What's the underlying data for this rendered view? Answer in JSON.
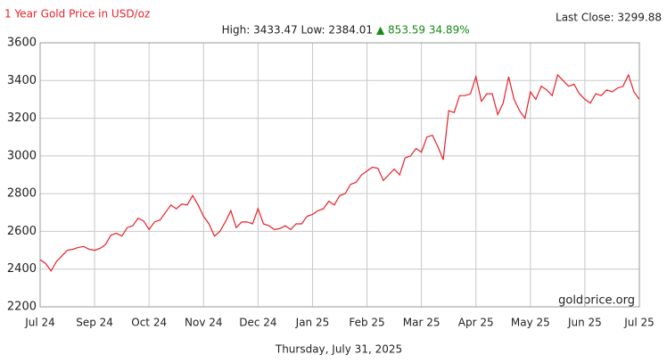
{
  "chart_data": {
    "type": "line",
    "title": "1 Year Gold Price in USD/oz",
    "last_close": "Last Close: 3299.88",
    "high_low": "High: 3433.47 Low: 2384.01",
    "change": "▲ 853.59 34.89%",
    "watermark": "goldprice.org",
    "date": "Thursday, July 31, 2025",
    "color": "#e8212a",
    "grid": true,
    "xlim": [
      0,
      110
    ],
    "xticks": [
      {
        "value": 0,
        "label": "Jul 24"
      },
      {
        "value": 10,
        "label": "Sep 24"
      },
      {
        "value": 20,
        "label": "Oct 24"
      },
      {
        "value": 30,
        "label": "Nov 24"
      },
      {
        "value": 40,
        "label": "Dec 24"
      },
      {
        "value": 50,
        "label": "Jan 25"
      },
      {
        "value": 60,
        "label": "Feb 25"
      },
      {
        "value": 70,
        "label": "Mar 25"
      },
      {
        "value": 80,
        "label": "Apr 25"
      },
      {
        "value": 90,
        "label": "May 25"
      },
      {
        "value": 100,
        "label": "Jun 25"
      },
      {
        "value": 110,
        "label": "Jul 25"
      }
    ],
    "ylim": [
      2200,
      3600
    ],
    "yticks": [
      2200,
      2400,
      2600,
      2800,
      3000,
      3200,
      3400,
      3600
    ],
    "x": [
      0,
      1,
      2,
      3,
      4,
      5,
      6,
      7,
      8,
      9,
      10,
      11,
      12,
      13,
      14,
      15,
      16,
      17,
      18,
      19,
      20,
      21,
      22,
      23,
      24,
      25,
      26,
      27,
      28,
      29,
      30,
      31,
      32,
      33,
      34,
      35,
      36,
      37,
      38,
      39,
      40,
      41,
      42,
      43,
      44,
      45,
      46,
      47,
      48,
      49,
      50,
      51,
      52,
      53,
      54,
      55,
      56,
      57,
      58,
      59,
      60,
      61,
      62,
      63,
      64,
      65,
      66,
      67,
      68,
      69,
      70,
      71,
      72,
      73,
      74,
      75,
      76,
      77,
      78,
      79,
      80,
      81,
      82,
      83,
      84,
      85,
      86,
      87,
      88,
      89,
      90,
      91,
      92,
      93,
      94,
      95,
      96,
      97,
      98,
      99,
      100,
      101,
      102,
      103,
      104,
      105,
      106,
      107,
      108,
      109,
      110
    ],
    "values": [
      2450,
      2430,
      2390,
      2440,
      2470,
      2500,
      2505,
      2515,
      2520,
      2505,
      2500,
      2510,
      2530,
      2580,
      2590,
      2575,
      2620,
      2630,
      2670,
      2655,
      2610,
      2650,
      2660,
      2700,
      2740,
      2720,
      2745,
      2740,
      2790,
      2740,
      2680,
      2640,
      2575,
      2600,
      2650,
      2710,
      2620,
      2650,
      2650,
      2640,
      2720,
      2640,
      2630,
      2610,
      2615,
      2630,
      2610,
      2640,
      2640,
      2680,
      2690,
      2710,
      2720,
      2760,
      2740,
      2790,
      2800,
      2850,
      2860,
      2900,
      2920,
      2940,
      2935,
      2870,
      2900,
      2930,
      2900,
      2990,
      3000,
      3040,
      3020,
      3100,
      3110,
      3050,
      2980,
      3240,
      3230,
      3320,
      3320,
      3330,
      3420,
      3290,
      3330,
      3330,
      3220,
      3280,
      3420,
      3300,
      3240,
      3200,
      3340,
      3300,
      3370,
      3350,
      3320,
      3430,
      3400,
      3370,
      3380,
      3330,
      3300,
      3280,
      3330,
      3320,
      3350,
      3340,
      3360,
      3370,
      3430,
      3340,
      3300
    ]
  }
}
